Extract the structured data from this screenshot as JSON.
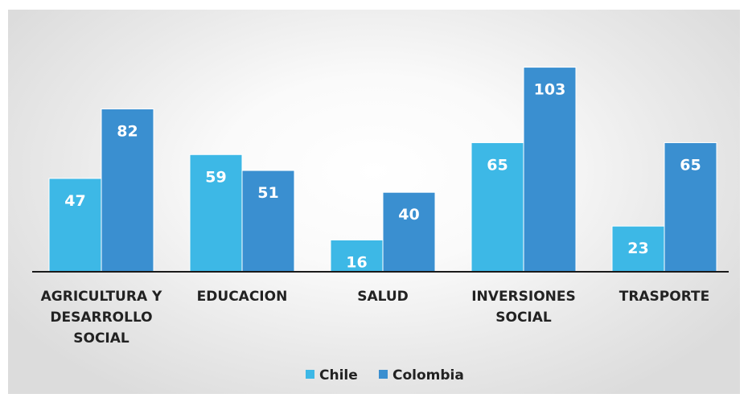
{
  "chart_data": {
    "type": "bar",
    "categories": [
      "AGRICULTURA Y DESARROLLO SOCIAL",
      "EDUCACION",
      "SALUD",
      "INVERSIONES SOCIAL",
      "TRASPORTE"
    ],
    "category_lines": [
      [
        "AGRICULTURA Y",
        "DESARROLLO",
        "SOCIAL"
      ],
      [
        "EDUCACION"
      ],
      [
        "SALUD"
      ],
      [
        "INVERSIONES",
        "SOCIAL"
      ],
      [
        "TRASPORTE"
      ]
    ],
    "series": [
      {
        "name": "Chile",
        "values": [
          47,
          59,
          16,
          65,
          23
        ],
        "color": "#3db8e6"
      },
      {
        "name": "Colombia",
        "values": [
          82,
          51,
          40,
          103,
          65
        ],
        "color": "#3a8fd0"
      }
    ],
    "ylim": [
      0,
      110
    ],
    "grid": false,
    "data_labels": true,
    "legend_position": "bottom"
  }
}
